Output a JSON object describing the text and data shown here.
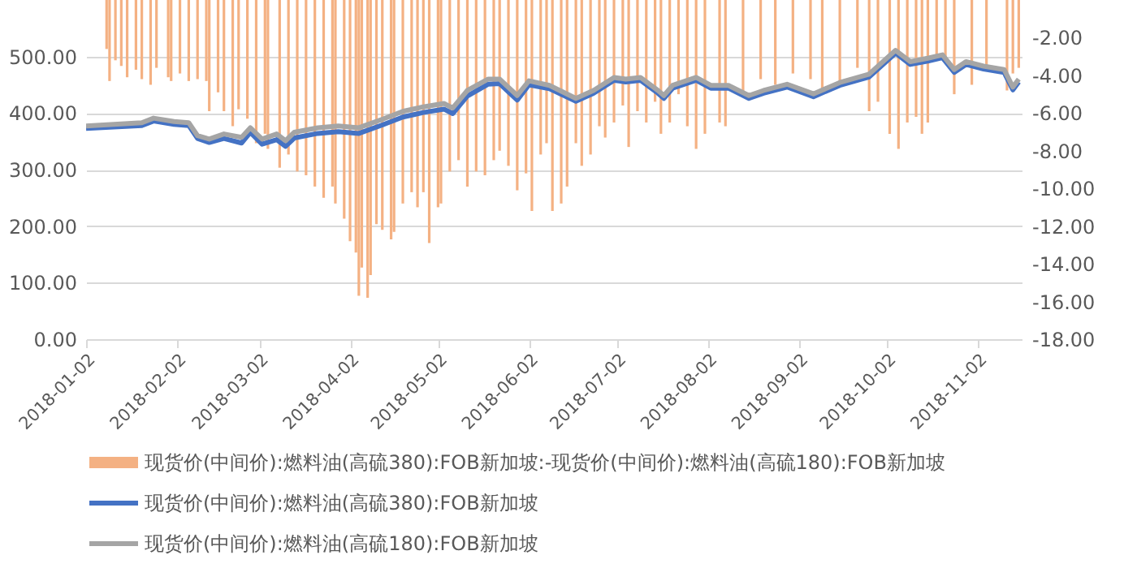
{
  "chart_data": {
    "type": "line",
    "legend": "bottom",
    "grid": "y",
    "xlim": [
      "2018-01-02",
      "2018-11-17"
    ],
    "xticks": [
      "2018-01-02",
      "2018-02-02",
      "2018-03-02",
      "2018-04-02",
      "2018-05-02",
      "2018-06-02",
      "2018-07-02",
      "2018-08-02",
      "2018-09-02",
      "2018-10-02",
      "2018-11-02"
    ],
    "ylim": [
      0,
      600
    ],
    "yticks": [
      {
        "value": 0,
        "label": "0.00"
      },
      {
        "value": 100,
        "label": "100.00"
      },
      {
        "value": 200,
        "label": "200.00"
      },
      {
        "value": 300,
        "label": "300.00"
      },
      {
        "value": 400,
        "label": "400.00"
      },
      {
        "value": 500,
        "label": "500.00"
      }
    ],
    "y2lim": [
      -18,
      0
    ],
    "y2ticks": [
      {
        "value": -2,
        "label": "-2.00"
      },
      {
        "value": -4,
        "label": "-4.00"
      },
      {
        "value": -6,
        "label": "-6.00"
      },
      {
        "value": -8,
        "label": "-8.00"
      },
      {
        "value": -10,
        "label": "-10.00"
      },
      {
        "value": -12,
        "label": "-12.00"
      },
      {
        "value": -14,
        "label": "-14.00"
      },
      {
        "value": -16,
        "label": "-16.00"
      },
      {
        "value": -18,
        "label": "-18.00"
      }
    ],
    "series": [
      {
        "name": "现货价(中间价):燃料油(高硫380):FOB新加坡:-现货价(中间价):燃料油(高硫180):FOB新加坡",
        "type": "bar",
        "axis": "y2",
        "color": "#f4b183",
        "x": [
          "2018-01-09",
          "2018-01-10",
          "2018-01-12",
          "2018-01-14",
          "2018-01-16",
          "2018-01-19",
          "2018-01-21",
          "2018-01-24",
          "2018-01-26",
          "2018-01-30",
          "2018-01-31",
          "2018-02-03",
          "2018-02-06",
          "2018-02-09",
          "2018-02-12",
          "2018-02-13",
          "2018-02-16",
          "2018-02-18",
          "2018-02-21",
          "2018-02-23",
          "2018-02-26",
          "2018-03-01",
          "2018-03-04",
          "2018-03-05",
          "2018-03-09",
          "2018-03-12",
          "2018-03-15",
          "2018-03-18",
          "2018-03-21",
          "2018-03-24",
          "2018-03-27",
          "2018-03-28",
          "2018-03-31",
          "2018-04-02",
          "2018-04-04",
          "2018-04-05",
          "2018-04-06",
          "2018-04-08",
          "2018-04-09",
          "2018-04-11",
          "2018-04-13",
          "2018-04-16",
          "2018-04-17",
          "2018-04-20",
          "2018-04-23",
          "2018-04-25",
          "2018-04-27",
          "2018-04-29",
          "2018-05-02",
          "2018-05-03",
          "2018-05-06",
          "2018-05-09",
          "2018-05-12",
          "2018-05-15",
          "2018-05-18",
          "2018-05-21",
          "2018-05-23",
          "2018-05-26",
          "2018-05-29",
          "2018-06-01",
          "2018-06-03",
          "2018-06-06",
          "2018-06-08",
          "2018-06-10",
          "2018-06-13",
          "2018-06-15",
          "2018-06-18",
          "2018-06-20",
          "2018-06-23",
          "2018-06-26",
          "2018-06-28",
          "2018-07-01",
          "2018-07-04",
          "2018-07-06",
          "2018-07-09",
          "2018-07-12",
          "2018-07-15",
          "2018-07-17",
          "2018-07-20",
          "2018-07-23",
          "2018-07-26",
          "2018-07-29",
          "2018-08-01",
          "2018-08-06",
          "2018-08-08",
          "2018-08-14",
          "2018-08-20",
          "2018-08-25",
          "2018-08-31",
          "2018-09-06",
          "2018-09-10",
          "2018-09-16",
          "2018-09-22",
          "2018-09-26",
          "2018-09-29",
          "2018-10-03",
          "2018-10-06",
          "2018-10-09",
          "2018-10-12",
          "2018-10-14",
          "2018-10-16",
          "2018-10-19",
          "2018-10-22",
          "2018-10-25",
          "2018-10-31",
          "2018-11-05",
          "2018-11-12",
          "2018-11-14",
          "2018-11-16"
        ],
        "values": [
          -2.6,
          -4.3,
          -3.2,
          -3.5,
          -4.1,
          -3.7,
          -4.2,
          -4.5,
          -3.6,
          -4.1,
          -4.3,
          -3.9,
          -4.3,
          -4.2,
          -4.3,
          -5.9,
          -4.9,
          -5.9,
          -6.7,
          -5.8,
          -6.3,
          -7.6,
          -7.1,
          -7.9,
          -8.9,
          -8.2,
          -9.1,
          -9.3,
          -9.9,
          -10.5,
          -9.9,
          -10.8,
          -11.6,
          -12.8,
          -13.4,
          -15.7,
          -14.2,
          -15.8,
          -14.6,
          -11.9,
          -12.2,
          -12.7,
          -12.3,
          -10.8,
          -10.2,
          -11.0,
          -10.2,
          -12.9,
          -11.0,
          -10.8,
          -9.1,
          -8.5,
          -9.9,
          -9.1,
          -9.3,
          -8.5,
          -8.0,
          -8.8,
          -10.1,
          -9.2,
          -11.2,
          -8.2,
          -7.6,
          -11.2,
          -10.8,
          -9.9,
          -7.6,
          -8.8,
          -8.2,
          -6.7,
          -7.3,
          -6.5,
          -5.6,
          -7.8,
          -5.9,
          -6.5,
          -5.4,
          -7.1,
          -6.5,
          -5.0,
          -6.7,
          -7.9,
          -7.1,
          -6.5,
          -6.7,
          -5.0,
          -4.2,
          -4.5,
          -3.9,
          -4.2,
          -4.8,
          -4.5,
          -3.6,
          -5.9,
          -5.4,
          -7.1,
          -7.9,
          -6.5,
          -6.2,
          -7.1,
          -6.5,
          -3.0,
          -3.3,
          -5.0,
          -4.5,
          -3.6,
          -4.8,
          -3.9,
          -3.6
        ]
      },
      {
        "name": "现货价(中间价):燃料油(高硫380):FOB新加坡",
        "color": "#4472c4",
        "x": [
          "2018-01-02",
          "2018-01-21",
          "2018-01-25",
          "2018-02-01",
          "2018-02-06",
          "2018-02-09",
          "2018-02-13",
          "2018-02-18",
          "2018-02-24",
          "2018-02-27",
          "2018-03-03",
          "2018-03-08",
          "2018-03-11",
          "2018-03-14",
          "2018-03-22",
          "2018-03-29",
          "2018-04-05",
          "2018-04-13",
          "2018-04-20",
          "2018-04-27",
          "2018-05-04",
          "2018-05-07",
          "2018-05-12",
          "2018-05-19",
          "2018-05-23",
          "2018-05-29",
          "2018-06-02",
          "2018-06-09",
          "2018-06-18",
          "2018-06-24",
          "2018-07-01",
          "2018-07-05",
          "2018-07-10",
          "2018-07-16",
          "2018-07-18",
          "2018-07-21",
          "2018-07-29",
          "2018-08-03",
          "2018-08-09",
          "2018-08-16",
          "2018-08-21",
          "2018-08-29",
          "2018-09-07",
          "2018-09-16",
          "2018-09-26",
          "2018-10-05",
          "2018-10-10",
          "2018-10-16",
          "2018-10-21",
          "2018-10-25",
          "2018-10-29",
          "2018-11-04",
          "2018-11-11",
          "2018-11-14",
          "2018-11-16"
        ],
        "values": [
          373,
          378,
          386,
          380,
          378,
          355,
          348,
          355,
          347,
          366,
          345,
          353,
          341,
          356,
          364,
          367,
          364,
          379,
          393,
          401,
          407,
          399,
          430,
          451,
          452,
          423,
          450,
          443,
          421,
          435,
          458,
          455,
          458,
          435,
          426,
          444,
          458,
          444,
          444,
          426,
          435,
          446,
          429,
          449,
          464,
          506,
          486,
          492,
          498,
          472,
          486,
          478,
          472,
          441,
          455
        ]
      },
      {
        "name": "现货价(中间价):燃料油(高硫180):FOB新加坡",
        "color": "#a5a5a5",
        "x": [
          "2018-01-02",
          "2018-01-21",
          "2018-01-25",
          "2018-02-01",
          "2018-02-06",
          "2018-02-09",
          "2018-02-13",
          "2018-02-18",
          "2018-02-24",
          "2018-02-27",
          "2018-03-03",
          "2018-03-08",
          "2018-03-11",
          "2018-03-14",
          "2018-03-22",
          "2018-03-29",
          "2018-04-05",
          "2018-04-13",
          "2018-04-20",
          "2018-04-27",
          "2018-05-04",
          "2018-05-07",
          "2018-05-12",
          "2018-05-19",
          "2018-05-23",
          "2018-05-29",
          "2018-06-02",
          "2018-06-09",
          "2018-06-18",
          "2018-06-24",
          "2018-07-01",
          "2018-07-05",
          "2018-07-10",
          "2018-07-16",
          "2018-07-18",
          "2018-07-21",
          "2018-07-29",
          "2018-08-03",
          "2018-08-09",
          "2018-08-16",
          "2018-08-21",
          "2018-08-29",
          "2018-09-07",
          "2018-09-16",
          "2018-09-26",
          "2018-10-05",
          "2018-10-10",
          "2018-10-16",
          "2018-10-21",
          "2018-10-25",
          "2018-10-29",
          "2018-11-04",
          "2018-11-11",
          "2018-11-14",
          "2018-11-16"
        ],
        "values": [
          377,
          383,
          391,
          385,
          383,
          360,
          354,
          363,
          357,
          374,
          354,
          363,
          351,
          366,
          374,
          377,
          374,
          389,
          403,
          411,
          417,
          409,
          440,
          460,
          460,
          431,
          457,
          449,
          426,
          440,
          463,
          460,
          463,
          440,
          431,
          449,
          463,
          449,
          449,
          431,
          440,
          451,
          434,
          454,
          469,
          511,
          491,
          497,
          503,
          477,
          491,
          483,
          477,
          446,
          460
        ]
      }
    ]
  }
}
